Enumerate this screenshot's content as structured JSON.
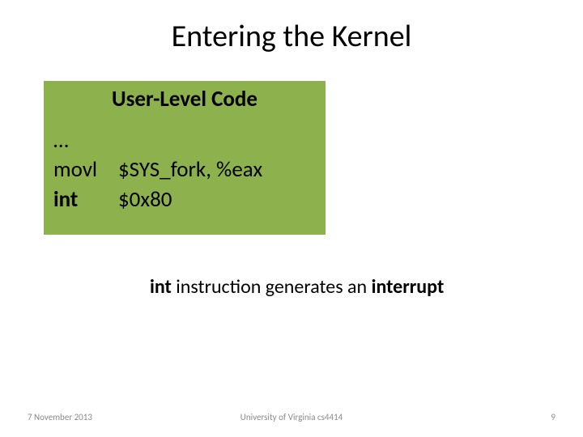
{
  "slide": {
    "title": "Entering the Kernel",
    "code_box": {
      "bg_color": "#8db14c",
      "title": "User-Level Code",
      "lines": {
        "l0": "…",
        "l1_mnem": "movl",
        "l1_args": "$SYS_fork, %eax",
        "l2_mnem": "int",
        "l2_args": "$0x80"
      }
    },
    "explain": {
      "strong1": "int",
      "mid": " instruction generates an ",
      "strong2": "interrupt"
    },
    "footer": {
      "date": "7 November 2013",
      "center": "University of Virginia cs4414",
      "page": "9"
    }
  }
}
